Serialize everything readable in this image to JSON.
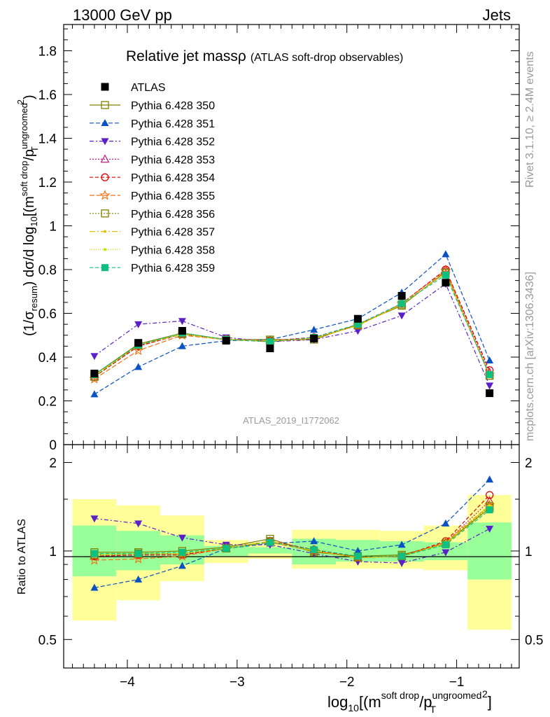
{
  "header": {
    "left": "13000 GeV pp",
    "right": "Jets"
  },
  "side_labels": {
    "rivet": "Rivet 3.1.10, ≥ 2.4M events",
    "mcplots": "mcplots.cern.ch [arXiv:1306.3436]"
  },
  "analysis_id": "ATLAS_2019_I1772062",
  "chart_data": [
    {
      "type": "line",
      "panel": "main",
      "title": "Relative jet mass ρ",
      "title_main": "Relative jet mass",
      "title_symbol": "ρ",
      "subtitle": "(ATLAS soft-drop observables)",
      "ylabel": "(1/σresum) dσ/d log10[(m soft drop/pT ungroomed)2]",
      "ylim": [
        0,
        1.92
      ],
      "yticks": [
        0,
        0.2,
        0.4,
        0.6,
        0.8,
        1,
        1.2,
        1.4,
        1.6,
        1.8
      ],
      "ytick_labels": [
        "0",
        "0.2",
        "0.4",
        "0.6",
        "0.8",
        "1",
        "1.2",
        "1.4",
        "1.6",
        "1.8"
      ],
      "x": [
        -4.3,
        -3.9,
        -3.5,
        -3.1,
        -2.7,
        -2.3,
        -1.9,
        -1.5,
        -1.1,
        -0.7
      ],
      "legend_position": "top-left",
      "data_series": {
        "name": "ATLAS",
        "color": "#000000",
        "values": [
          0.325,
          0.465,
          0.52,
          0.475,
          0.44,
          0.485,
          0.575,
          0.68,
          0.74,
          0.235
        ]
      },
      "series": [
        {
          "name": "Pythia 6.428 350",
          "color": "#808000",
          "marker": "open-square",
          "dash": "solid",
          "values": [
            0.32,
            0.46,
            0.51,
            0.48,
            0.48,
            0.48,
            0.55,
            0.635,
            0.79,
            0.315
          ]
        },
        {
          "name": "Pythia 6.428 351",
          "color": "#0a52c2",
          "marker": "filled-triangle-up",
          "dash": "6,3",
          "values": [
            0.23,
            0.355,
            0.45,
            0.475,
            0.48,
            0.525,
            0.575,
            0.695,
            0.87,
            0.385
          ]
        },
        {
          "name": "Pythia 6.428 352",
          "color": "#5b20c8",
          "marker": "filled-triangle-down",
          "dash": "6,3,2,3",
          "values": [
            0.405,
            0.55,
            0.565,
            0.49,
            0.47,
            0.48,
            0.52,
            0.59,
            0.735,
            0.27
          ]
        },
        {
          "name": "Pythia 6.428 353",
          "color": "#c0208a",
          "marker": "open-triangle-up",
          "dash": "2,2",
          "values": [
            0.31,
            0.45,
            0.505,
            0.48,
            0.475,
            0.49,
            0.545,
            0.645,
            0.8,
            0.33
          ]
        },
        {
          "name": "Pythia 6.428 354",
          "color": "#e00000",
          "marker": "open-circle",
          "dash": "5,3",
          "values": [
            0.31,
            0.45,
            0.505,
            0.48,
            0.475,
            0.49,
            0.545,
            0.645,
            0.8,
            0.34
          ]
        },
        {
          "name": "Pythia 6.428 355",
          "color": "#f07010",
          "marker": "open-star",
          "dash": "7,3",
          "values": [
            0.3,
            0.43,
            0.5,
            0.48,
            0.47,
            0.485,
            0.545,
            0.645,
            0.795,
            0.32
          ]
        },
        {
          "name": "Pythia 6.428 356",
          "color": "#808000",
          "marker": "open-square",
          "dash": "2,2",
          "values": [
            0.31,
            0.455,
            0.505,
            0.48,
            0.475,
            0.485,
            0.545,
            0.64,
            0.785,
            0.315
          ]
        },
        {
          "name": "Pythia 6.428 357",
          "color": "#e0c000",
          "marker": "small-dot",
          "dash": "8,3,2,3",
          "values": [
            0.315,
            0.455,
            0.505,
            0.48,
            0.475,
            0.485,
            0.545,
            0.64,
            0.785,
            0.32
          ]
        },
        {
          "name": "Pythia 6.428 358",
          "color": "#c8e000",
          "marker": "small-dot",
          "dash": "1,2",
          "values": [
            0.315,
            0.455,
            0.505,
            0.48,
            0.475,
            0.485,
            0.545,
            0.64,
            0.785,
            0.32
          ]
        },
        {
          "name": "Pythia 6.428 359",
          "color": "#10c080",
          "marker": "filled-square",
          "dash": "5,3",
          "values": [
            0.32,
            0.455,
            0.51,
            0.48,
            0.47,
            0.49,
            0.55,
            0.645,
            0.775,
            0.32
          ]
        }
      ]
    },
    {
      "type": "line",
      "panel": "ratio",
      "ylabel": "Ratio to ATLAS",
      "ylim": [
        0.4,
        2.3
      ],
      "y_scale": "log",
      "yticks": [
        0.5,
        1,
        2
      ],
      "ytick_labels": [
        "0.5",
        "1",
        "2"
      ],
      "xlabel": "log10[(m soft drop/pT ungroomed)2]",
      "xlim": [
        -4.58,
        -0.43
      ],
      "xticks": [
        -4,
        -3,
        -2,
        -1
      ],
      "xtick_labels": [
        "−4",
        "−3",
        "−2",
        "−1"
      ],
      "bin_edges": [
        -4.5,
        -4.1,
        -3.7,
        -3.3,
        -2.9,
        -2.5,
        -2.1,
        -1.7,
        -1.3,
        -0.9,
        -0.5
      ],
      "bands": {
        "inner_color": "#99ff99",
        "outer_color": "#ffff99",
        "inner_low": [
          0.82,
          0.86,
          0.9,
          0.96,
          0.98,
          0.9,
          0.92,
          0.92,
          0.93,
          0.8
        ],
        "inner_high": [
          1.22,
          1.17,
          1.13,
          1.04,
          1.03,
          1.1,
          1.09,
          1.08,
          1.07,
          1.25
        ],
        "outer_low": [
          0.58,
          0.68,
          0.79,
          0.91,
          0.94,
          0.87,
          0.87,
          0.87,
          0.86,
          0.54
        ],
        "outer_high": [
          1.5,
          1.43,
          1.32,
          1.09,
          1.07,
          1.18,
          1.18,
          1.17,
          1.22,
          1.55
        ]
      },
      "series": [
        {
          "name": "Pythia 6.428 350",
          "values": [
            0.99,
            0.99,
            1.0,
            1.03,
            1.1,
            0.99,
            0.96,
            0.97,
            1.06,
            1.4
          ]
        },
        {
          "name": "Pythia 6.428 351",
          "values": [
            0.75,
            0.8,
            0.89,
            1.02,
            1.06,
            1.08,
            1.0,
            1.05,
            1.24,
            1.75
          ]
        },
        {
          "name": "Pythia 6.428 352",
          "values": [
            1.29,
            1.24,
            1.11,
            1.05,
            1.05,
            0.98,
            0.92,
            0.91,
            0.99,
            1.19
          ]
        },
        {
          "name": "Pythia 6.428 353",
          "values": [
            0.96,
            0.97,
            0.97,
            1.02,
            1.08,
            1.01,
            0.95,
            0.96,
            1.07,
            1.48
          ]
        },
        {
          "name": "Pythia 6.428 354",
          "values": [
            0.96,
            0.97,
            0.97,
            1.02,
            1.08,
            1.01,
            0.95,
            0.96,
            1.08,
            1.55
          ]
        },
        {
          "name": "Pythia 6.428 355",
          "values": [
            0.93,
            0.94,
            0.96,
            1.02,
            1.07,
            1.0,
            0.95,
            0.96,
            1.07,
            1.43
          ]
        },
        {
          "name": "Pythia 6.428 356",
          "values": [
            0.97,
            0.98,
            0.98,
            1.02,
            1.08,
            1.0,
            0.95,
            0.96,
            1.06,
            1.42
          ]
        },
        {
          "name": "Pythia 6.428 357",
          "values": [
            0.97,
            0.98,
            0.98,
            1.02,
            1.08,
            1.0,
            0.95,
            0.96,
            1.06,
            1.43
          ]
        },
        {
          "name": "Pythia 6.428 358",
          "values": [
            0.97,
            0.98,
            0.98,
            1.02,
            1.08,
            1.0,
            0.95,
            0.96,
            1.06,
            1.43
          ]
        },
        {
          "name": "Pythia 6.428 359",
          "values": [
            0.98,
            0.98,
            0.99,
            1.02,
            1.07,
            1.01,
            0.96,
            0.96,
            1.05,
            1.38
          ]
        }
      ]
    }
  ]
}
